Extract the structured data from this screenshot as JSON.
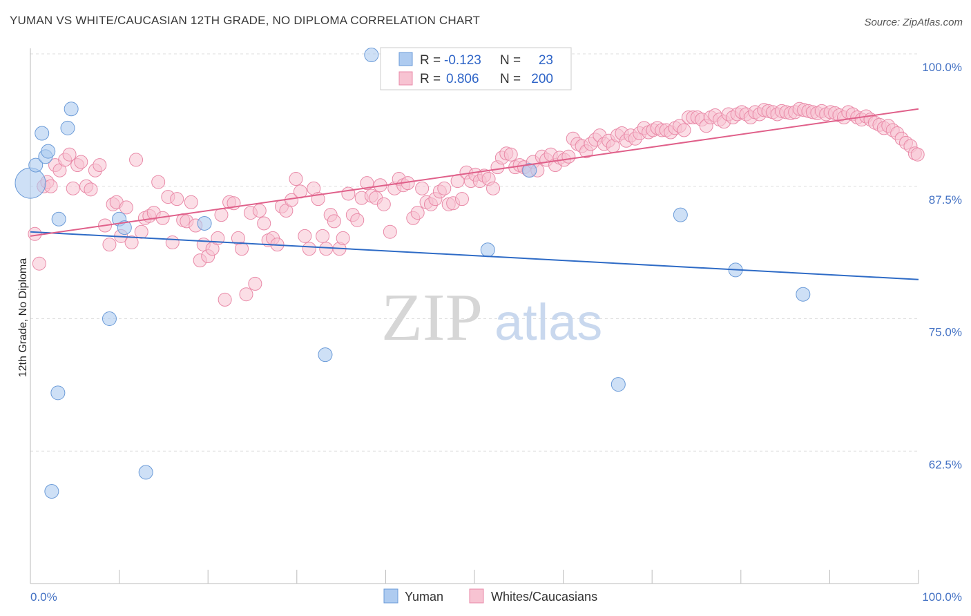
{
  "title": "YUMAN VS WHITE/CAUCASIAN 12TH GRADE, NO DIPLOMA CORRELATION CHART",
  "source": "Source: ZipAtlas.com",
  "watermark": {
    "zip": "ZIP",
    "atlas": "atlas"
  },
  "colors": {
    "yuman_fill": "#aecbf0",
    "yuman_stroke": "#6b9bd8",
    "yuman_line": "#2e6bc6",
    "white_fill": "#f7c3d2",
    "white_stroke": "#e98aa8",
    "white_line": "#e0608a",
    "grid": "#dddddd",
    "tick_label": "#4472c4"
  },
  "legend_box": {
    "rows": [
      {
        "r_label": "R =",
        "r_value": "-0.123",
        "n_label": "N =",
        "n_value": "23"
      },
      {
        "r_label": "R =",
        "r_value": "0.806",
        "n_label": "N =",
        "n_value": "200"
      }
    ]
  },
  "bottom_legend": [
    "Yuman",
    "Whites/Caucasians"
  ],
  "chart_data": {
    "type": "scatter",
    "ylabel": "12th Grade, No Diploma",
    "xlabel": "",
    "xlim": [
      0,
      100
    ],
    "ylim": [
      50,
      100
    ],
    "x_tick_labels": [
      "0.0%",
      "100.0%"
    ],
    "y_ticks": [
      62.5,
      75.0,
      87.5,
      100.0
    ],
    "y_tick_labels": [
      "62.5%",
      "75.0%",
      "87.5%",
      "100.0%"
    ],
    "grid": true,
    "legend_placement": "top-center",
    "series": [
      {
        "name": "Yuman",
        "r": -0.123,
        "n": 23,
        "trend": {
          "x": [
            0,
            100
          ],
          "y": [
            83.2,
            78.7
          ]
        },
        "points": [
          [
            0.0,
            87.8,
            22
          ],
          [
            0.6,
            89.5,
            10
          ],
          [
            1.3,
            92.5,
            10
          ],
          [
            1.7,
            90.3,
            10
          ],
          [
            2.0,
            90.8,
            10
          ],
          [
            4.2,
            93.0,
            10
          ],
          [
            4.6,
            94.8,
            10
          ],
          [
            3.2,
            84.4,
            10
          ],
          [
            10.0,
            84.4,
            10
          ],
          [
            10.6,
            83.6,
            10
          ],
          [
            19.6,
            84.0,
            10
          ],
          [
            38.4,
            99.9,
            10
          ],
          [
            8.9,
            75.0,
            10
          ],
          [
            3.1,
            68.0,
            10
          ],
          [
            2.4,
            58.7,
            10
          ],
          [
            13.0,
            60.5,
            10
          ],
          [
            33.2,
            71.6,
            10
          ],
          [
            51.5,
            81.5,
            10
          ],
          [
            56.2,
            89.0,
            10
          ],
          [
            73.2,
            84.8,
            10
          ],
          [
            79.4,
            79.6,
            10
          ],
          [
            87.0,
            77.3,
            10
          ],
          [
            66.2,
            68.8,
            10
          ]
        ]
      },
      {
        "name": "Whites/Caucasians",
        "r": 0.806,
        "n": 200,
        "trend": {
          "x": [
            0,
            100
          ],
          "y": [
            82.8,
            94.8
          ]
        },
        "points": [
          [
            0.5,
            83.0
          ],
          [
            1.0,
            80.2
          ],
          [
            1.5,
            87.5
          ],
          [
            1.9,
            87.9
          ],
          [
            2.3,
            87.5
          ],
          [
            2.8,
            89.5
          ],
          [
            3.3,
            89.0
          ],
          [
            3.9,
            90.0
          ],
          [
            4.4,
            90.5
          ],
          [
            4.8,
            87.3
          ],
          [
            5.3,
            89.5
          ],
          [
            5.7,
            89.8
          ],
          [
            6.3,
            87.5
          ],
          [
            6.8,
            87.2
          ],
          [
            7.3,
            89.0
          ],
          [
            7.8,
            89.5
          ],
          [
            8.4,
            83.8
          ],
          [
            8.9,
            82.0
          ],
          [
            9.3,
            85.8
          ],
          [
            9.7,
            86.0
          ],
          [
            10.2,
            82.8
          ],
          [
            10.8,
            85.5
          ],
          [
            11.4,
            82.2
          ],
          [
            11.9,
            90.0
          ],
          [
            12.5,
            83.2
          ],
          [
            12.9,
            84.5
          ],
          [
            13.4,
            84.7
          ],
          [
            13.9,
            85.0
          ],
          [
            14.4,
            87.9
          ],
          [
            14.9,
            84.5
          ],
          [
            15.5,
            86.5
          ],
          [
            16.0,
            82.2
          ],
          [
            16.5,
            86.3
          ],
          [
            17.2,
            84.3
          ],
          [
            17.6,
            84.2
          ],
          [
            18.1,
            86.0
          ],
          [
            18.6,
            83.8
          ],
          [
            19.1,
            80.5
          ],
          [
            19.5,
            82.0
          ],
          [
            20.0,
            80.9
          ],
          [
            20.5,
            81.6
          ],
          [
            21.1,
            82.6
          ],
          [
            21.5,
            84.8
          ],
          [
            21.9,
            76.8
          ],
          [
            22.4,
            86.0
          ],
          [
            22.9,
            85.9
          ],
          [
            23.4,
            82.6
          ],
          [
            23.8,
            81.6
          ],
          [
            24.3,
            77.3
          ],
          [
            24.8,
            85.0
          ],
          [
            25.3,
            78.3
          ],
          [
            25.8,
            85.2
          ],
          [
            26.3,
            84.0
          ],
          [
            26.8,
            82.4
          ],
          [
            27.3,
            82.6
          ],
          [
            27.8,
            82.0
          ],
          [
            28.3,
            85.6
          ],
          [
            28.8,
            85.2
          ],
          [
            29.4,
            86.2
          ],
          [
            29.9,
            88.2
          ],
          [
            30.4,
            87.0
          ],
          [
            30.9,
            82.8
          ],
          [
            31.4,
            81.6
          ],
          [
            31.9,
            87.3
          ],
          [
            32.4,
            86.3
          ],
          [
            32.9,
            82.8
          ],
          [
            33.3,
            81.6
          ],
          [
            33.8,
            84.8
          ],
          [
            34.2,
            84.2
          ],
          [
            34.8,
            81.6
          ],
          [
            35.2,
            82.6
          ],
          [
            35.8,
            86.8
          ],
          [
            36.3,
            84.8
          ],
          [
            36.8,
            84.3
          ],
          [
            37.3,
            86.4
          ],
          [
            37.9,
            87.8
          ],
          [
            38.4,
            86.6
          ],
          [
            38.9,
            86.4
          ],
          [
            39.4,
            87.6
          ],
          [
            39.8,
            85.8
          ],
          [
            40.5,
            83.2
          ],
          [
            41.0,
            87.3
          ],
          [
            41.5,
            88.2
          ],
          [
            42.0,
            87.6
          ],
          [
            42.5,
            87.8
          ],
          [
            43.1,
            84.5
          ],
          [
            43.6,
            85.0
          ],
          [
            44.1,
            87.3
          ],
          [
            44.6,
            86.0
          ],
          [
            45.1,
            85.8
          ],
          [
            45.6,
            86.3
          ],
          [
            46.1,
            87.0
          ],
          [
            46.6,
            87.3
          ],
          [
            47.1,
            85.8
          ],
          [
            47.6,
            85.9
          ],
          [
            48.1,
            88.0
          ],
          [
            48.6,
            86.3
          ],
          [
            49.1,
            88.8
          ],
          [
            49.6,
            88.0
          ],
          [
            50.1,
            88.6
          ],
          [
            50.6,
            88.0
          ],
          [
            51.1,
            88.5
          ],
          [
            51.6,
            88.2
          ],
          [
            52.1,
            87.3
          ],
          [
            52.6,
            89.3
          ],
          [
            53.1,
            90.2
          ],
          [
            53.6,
            90.6
          ],
          [
            54.1,
            90.5
          ],
          [
            54.6,
            89.3
          ],
          [
            55.1,
            89.5
          ],
          [
            55.6,
            89.3
          ],
          [
            56.1,
            89.0
          ],
          [
            56.6,
            89.8
          ],
          [
            57.1,
            89.0
          ],
          [
            57.6,
            90.3
          ],
          [
            58.1,
            90.0
          ],
          [
            58.6,
            90.5
          ],
          [
            59.1,
            89.5
          ],
          [
            59.6,
            90.2
          ],
          [
            60.1,
            90.0
          ],
          [
            60.6,
            90.3
          ],
          [
            61.1,
            92.0
          ],
          [
            61.6,
            91.5
          ],
          [
            62.1,
            91.3
          ],
          [
            62.6,
            90.8
          ],
          [
            63.1,
            91.5
          ],
          [
            63.6,
            91.9
          ],
          [
            64.1,
            92.3
          ],
          [
            64.6,
            91.5
          ],
          [
            65.1,
            91.8
          ],
          [
            65.6,
            91.3
          ],
          [
            66.1,
            92.3
          ],
          [
            66.6,
            92.5
          ],
          [
            67.1,
            91.8
          ],
          [
            67.6,
            92.3
          ],
          [
            68.1,
            92.0
          ],
          [
            68.6,
            92.5
          ],
          [
            69.1,
            93.0
          ],
          [
            69.6,
            92.6
          ],
          [
            70.1,
            92.8
          ],
          [
            70.6,
            93.0
          ],
          [
            71.1,
            92.8
          ],
          [
            71.6,
            92.8
          ],
          [
            72.1,
            92.6
          ],
          [
            72.6,
            93.0
          ],
          [
            73.1,
            93.2
          ],
          [
            73.6,
            92.8
          ],
          [
            74.1,
            94.0
          ],
          [
            74.6,
            94.0
          ],
          [
            75.1,
            94.0
          ],
          [
            75.6,
            93.8
          ],
          [
            76.1,
            93.2
          ],
          [
            76.6,
            94.0
          ],
          [
            77.1,
            94.2
          ],
          [
            77.6,
            93.8
          ],
          [
            78.1,
            93.6
          ],
          [
            78.6,
            94.3
          ],
          [
            79.1,
            94.0
          ],
          [
            79.6,
            94.3
          ],
          [
            80.1,
            94.5
          ],
          [
            80.6,
            94.3
          ],
          [
            81.1,
            94.0
          ],
          [
            81.6,
            94.5
          ],
          [
            82.1,
            94.3
          ],
          [
            82.6,
            94.7
          ],
          [
            83.1,
            94.6
          ],
          [
            83.6,
            94.5
          ],
          [
            84.1,
            94.3
          ],
          [
            84.6,
            94.6
          ],
          [
            85.1,
            94.5
          ],
          [
            85.6,
            94.4
          ],
          [
            86.1,
            94.5
          ],
          [
            86.6,
            94.8
          ],
          [
            87.1,
            94.7
          ],
          [
            87.6,
            94.6
          ],
          [
            88.1,
            94.5
          ],
          [
            88.6,
            94.4
          ],
          [
            89.1,
            94.6
          ],
          [
            89.6,
            94.3
          ],
          [
            90.1,
            94.5
          ],
          [
            90.6,
            94.4
          ],
          [
            91.1,
            94.2
          ],
          [
            91.6,
            94.0
          ],
          [
            92.1,
            94.5
          ],
          [
            92.6,
            94.3
          ],
          [
            93.1,
            94.0
          ],
          [
            93.6,
            93.8
          ],
          [
            94.1,
            94.1
          ],
          [
            94.6,
            93.8
          ],
          [
            95.1,
            93.5
          ],
          [
            95.6,
            93.3
          ],
          [
            96.1,
            93.0
          ],
          [
            96.6,
            93.2
          ],
          [
            97.1,
            92.8
          ],
          [
            97.6,
            92.5
          ],
          [
            98.1,
            92.0
          ],
          [
            98.6,
            91.6
          ],
          [
            99.1,
            91.3
          ],
          [
            99.6,
            90.6
          ],
          [
            99.9,
            90.5
          ]
        ]
      }
    ]
  }
}
